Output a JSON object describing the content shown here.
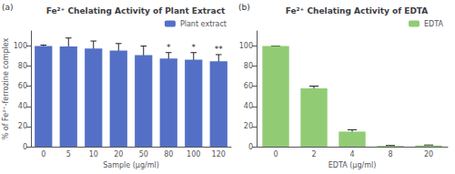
{
  "chart_data": [
    {
      "type": "bar",
      "title": "Fe²⁺ Chelating Activity of Plant Extract",
      "xlabel": "Sample (μg/ml)",
      "ylabel": "% of Fe²⁺-ferrozine complex",
      "categories": [
        0,
        5,
        10,
        20,
        50,
        80,
        100,
        120
      ],
      "series": [
        {
          "name": "Plant extract",
          "values": [
            100,
            99.5,
            97.5,
            95.5,
            91.0,
            87.5,
            86.5,
            85.0
          ],
          "errors": [
            1.0,
            8.5,
            7.5,
            7.0,
            9.0,
            6.0,
            7.0,
            6.5
          ]
        }
      ],
      "ylim": [
        0,
        115
      ],
      "yticks": [
        0,
        20,
        40,
        60,
        80,
        100
      ],
      "grid": false,
      "legend": "upper right",
      "annotations": [
        {
          "text": "(a)"
        },
        {
          "x": 80,
          "text": "*"
        },
        {
          "x": 100,
          "text": "*"
        },
        {
          "x": 120,
          "text": "**"
        }
      ]
    },
    {
      "type": "bar",
      "title": "Fe²⁺ Chelating Activity of EDTA",
      "xlabel": "EDTA (μg/ml)",
      "categories": [
        0,
        2,
        4,
        8,
        20
      ],
      "series": [
        {
          "name": "EDTA",
          "values": [
            100,
            58,
            15,
            0.8,
            1.2
          ],
          "errors": [
            0.0,
            2.2,
            1.8,
            0.4,
            0.4
          ]
        }
      ],
      "ylim": [
        0,
        115
      ],
      "yticks": [
        0,
        20,
        40,
        60,
        80,
        100
      ],
      "grid": false,
      "legend": "upper right",
      "annotations": [
        {
          "text": "(b)"
        }
      ]
    }
  ]
}
